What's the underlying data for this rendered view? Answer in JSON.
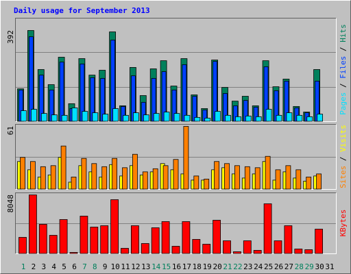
{
  "chart_data": [
    {
      "type": "bar",
      "title": "Daily usage for September 2013",
      "legend_separator": " / ",
      "ylim": [
        0,
        392
      ],
      "yticks": [
        392
      ],
      "series": [
        {
          "name": "Hits",
          "color": "#00805c",
          "values": [
            141,
            392,
            224,
            159,
            277,
            77,
            271,
            200,
            221,
            386,
            68,
            233,
            112,
            227,
            262,
            153,
            271,
            115,
            56,
            265,
            147,
            88,
            109,
            68,
            262,
            150,
            183,
            65,
            41,
            224,
            null
          ]
        },
        {
          "name": "Files",
          "color": "#0040ff",
          "values": [
            136,
            365,
            200,
            136,
            256,
            56,
            248,
            189,
            186,
            351,
            65,
            197,
            83,
            186,
            215,
            136,
            245,
            109,
            50,
            259,
            121,
            68,
            91,
            62,
            236,
            133,
            174,
            59,
            38,
            174,
            null
          ]
        },
        {
          "name": "Pages",
          "color": "#00e0ff",
          "values": [
            47,
            53,
            35,
            29,
            27,
            59,
            44,
            38,
            32,
            56,
            27,
            38,
            29,
            35,
            41,
            35,
            27,
            18,
            15,
            44,
            27,
            21,
            24,
            21,
            53,
            27,
            38,
            27,
            21,
            32,
            null
          ]
        }
      ]
    },
    {
      "type": "bar",
      "legend_separator": " / ",
      "ylim": [
        0,
        61
      ],
      "yticks": [
        61
      ],
      "series": [
        {
          "name": "Visits",
          "color": "#ffff00",
          "values": [
            27,
            19,
            12,
            14,
            31,
            7,
            23,
            17,
            12,
            24,
            13,
            23,
            14,
            17,
            25,
            19,
            15,
            9,
            9,
            19,
            21,
            15,
            11,
            15,
            27,
            9,
            17,
            11,
            8,
            13,
            null
          ]
        },
        {
          "name": "Sites",
          "color": "#ff8000",
          "values": [
            31,
            27,
            22,
            23,
            42,
            12,
            30,
            25,
            22,
            30,
            21,
            34,
            17,
            20,
            23,
            29,
            61,
            13,
            10,
            27,
            25,
            23,
            22,
            21,
            32,
            19,
            23,
            19,
            12,
            15,
            null
          ]
        }
      ]
    },
    {
      "type": "bar",
      "ylim": [
        0,
        8048
      ],
      "yticks": [
        8048
      ],
      "categories": [
        "1",
        "2",
        "3",
        "4",
        "5",
        "6",
        "7",
        "8",
        "9",
        "10",
        "11",
        "12",
        "13",
        "14",
        "15",
        "16",
        "17",
        "18",
        "19",
        "20",
        "21",
        "22",
        "23",
        "24",
        "25",
        "26",
        "27",
        "28",
        "29",
        "30",
        "31"
      ],
      "highlight_categories": [
        "1",
        "7",
        "8",
        "14",
        "15",
        "21",
        "22",
        "28",
        "29"
      ],
      "highlight_color": "#00805c",
      "series": [
        {
          "name": "KBytes",
          "color": "#ff0000",
          "values": [
            2246,
            8048,
            4025,
            2527,
            4680,
            187,
            5148,
            3650,
            3838,
            7394,
            749,
            3838,
            1404,
            3557,
            4399,
            1030,
            4399,
            1966,
            1310,
            4586,
            1778,
            281,
            1778,
            468,
            6833,
            1778,
            3838,
            655,
            562,
            3370,
            null
          ]
        }
      ]
    }
  ]
}
